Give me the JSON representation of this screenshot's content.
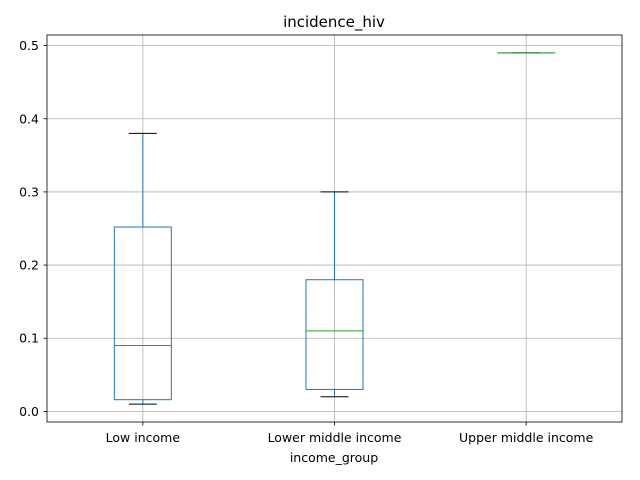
{
  "chart_data": {
    "type": "box",
    "title": "incidence_hiv",
    "xlabel": "income_group",
    "ylabel": "",
    "categories": [
      "Low income",
      "Lower middle income",
      "Upper middle income"
    ],
    "ylim": [
      -0.0145,
      0.5145
    ],
    "yticks": [
      0.0,
      0.1,
      0.2,
      0.3,
      0.4,
      0.5
    ],
    "ytick_labels": [
      "0.0",
      "0.1",
      "0.2",
      "0.3",
      "0.4",
      "0.5"
    ],
    "grid": true,
    "boxes": [
      {
        "category": "Low income",
        "whisker_low": 0.01,
        "q1": 0.016,
        "median": 0.09,
        "q3": 0.252,
        "whisker_high": 0.38
      },
      {
        "category": "Lower middle income",
        "whisker_low": 0.02,
        "q1": 0.03,
        "median": 0.11,
        "q3": 0.18,
        "whisker_high": 0.3
      },
      {
        "category": "Upper middle income",
        "whisker_low": 0.49,
        "q1": 0.49,
        "median": 0.49,
        "q3": 0.49,
        "whisker_high": 0.49
      }
    ],
    "colors": {
      "box": "#1f77b4",
      "median": "#2ca02c",
      "cap": "#000000",
      "grid": "#b0b0b0"
    }
  }
}
